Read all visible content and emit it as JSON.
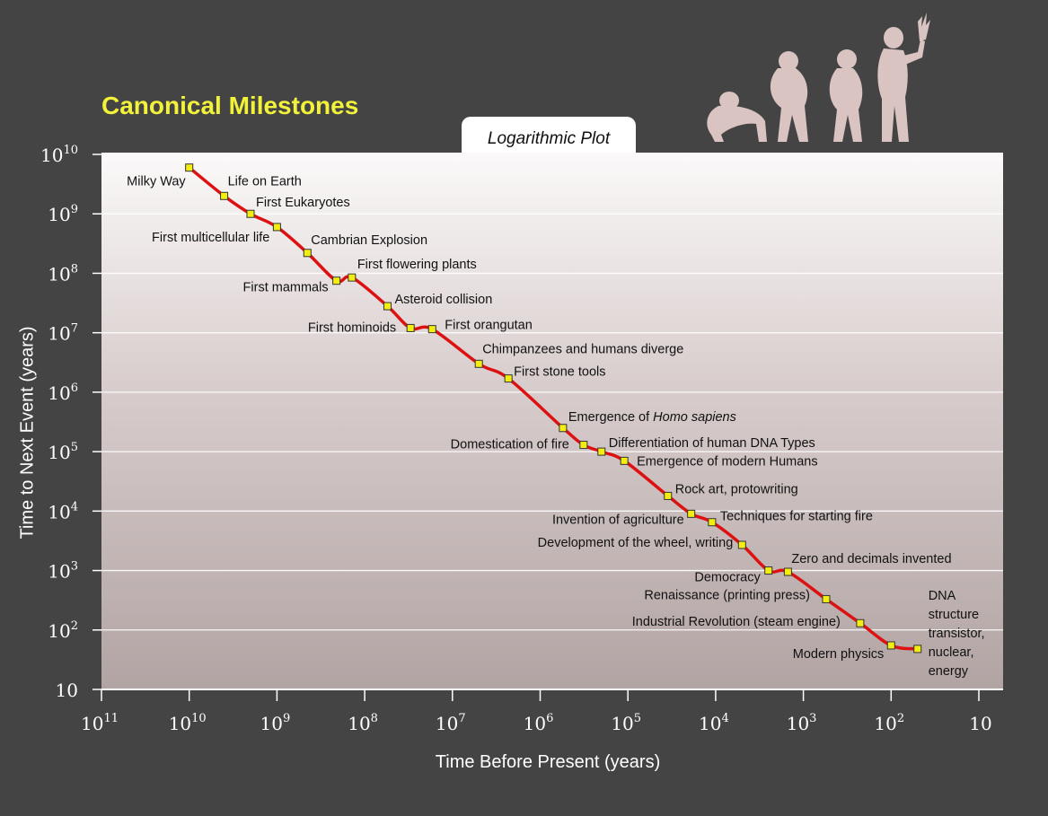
{
  "chart_data": {
    "type": "line",
    "title": "Canonical Milestones",
    "subtitle": "Logarithmic Plot",
    "xlabel": "Time Before Present (years)",
    "ylabel": "Time to Next Event (years)",
    "x_scale": "log",
    "y_scale": "log",
    "xlim": [
      100000000000,
      10
    ],
    "ylim": [
      10,
      10000000000
    ],
    "x_ticks": [
      {
        "exp": 11,
        "base": "10",
        "sup": "11"
      },
      {
        "exp": 10,
        "base": "10",
        "sup": "10"
      },
      {
        "exp": 9,
        "base": "10",
        "sup": "9"
      },
      {
        "exp": 8,
        "base": "10",
        "sup": "8"
      },
      {
        "exp": 7,
        "base": "10",
        "sup": "7"
      },
      {
        "exp": 6,
        "base": "10",
        "sup": "6"
      },
      {
        "exp": 5,
        "base": "10",
        "sup": "5"
      },
      {
        "exp": 4,
        "base": "10",
        "sup": "4"
      },
      {
        "exp": 3,
        "base": "10",
        "sup": "3"
      },
      {
        "exp": 2,
        "base": "10",
        "sup": "2"
      },
      {
        "exp": 1,
        "base": "10",
        "sup": ""
      }
    ],
    "y_ticks": [
      {
        "exp": 10,
        "base": "10",
        "sup": "10"
      },
      {
        "exp": 9,
        "base": "10",
        "sup": "9"
      },
      {
        "exp": 8,
        "base": "10",
        "sup": "8"
      },
      {
        "exp": 7,
        "base": "10",
        "sup": "7"
      },
      {
        "exp": 6,
        "base": "10",
        "sup": "6"
      },
      {
        "exp": 5,
        "base": "10",
        "sup": "5"
      },
      {
        "exp": 4,
        "base": "10",
        "sup": "4"
      },
      {
        "exp": 3,
        "base": "10",
        "sup": "3"
      },
      {
        "exp": 2,
        "base": "10",
        "sup": "2"
      },
      {
        "exp": 1,
        "base": "10",
        "sup": ""
      }
    ],
    "grid": true,
    "line_color": "#dd1111",
    "marker_color": "#f4ee10",
    "points": [
      {
        "label": "Milky Way",
        "x": 10000000000,
        "y": 6000000000
      },
      {
        "label": "Life on Earth",
        "x": 4000000000,
        "y": 2000000000
      },
      {
        "label": "First Eukaryotes",
        "x": 2000000000,
        "y": 1000000000
      },
      {
        "label": "First multicellular life",
        "x": 1000000000,
        "y": 600000000
      },
      {
        "label": "Cambrian Explosion",
        "x": 450000000,
        "y": 220000000
      },
      {
        "label": "First mammals",
        "x": 210000000,
        "y": 75000000
      },
      {
        "label": "First flowering plants",
        "x": 140000000,
        "y": 85000000
      },
      {
        "label": "Asteroid collision",
        "x": 55000000,
        "y": 28000000
      },
      {
        "label": "First hominoids",
        "x": 30000000,
        "y": 12000000
      },
      {
        "label": "First orangutan",
        "x": 17000000,
        "y": 11500000
      },
      {
        "label": "Chimpanzees and humans diverge",
        "x": 5000000,
        "y": 3000000
      },
      {
        "label": "First stone tools",
        "x": 2300000,
        "y": 1700000
      },
      {
        "label_pre": "Emergence of ",
        "label_em": "Homo sapiens",
        "x": 550000,
        "y": 250000
      },
      {
        "label": "Domestication of fire",
        "x": 320000,
        "y": 130000
      },
      {
        "label": "Differentiation of human DNA Types",
        "x": 200000,
        "y": 100000
      },
      {
        "label": "Emergence of modern Humans",
        "x": 110000,
        "y": 70000
      },
      {
        "label": "Rock art, protowriting",
        "x": 35000,
        "y": 18000
      },
      {
        "label": "Invention of agriculture",
        "x": 19000,
        "y": 9000
      },
      {
        "label": "Techniques for starting fire",
        "x": 11000,
        "y": 6500
      },
      {
        "label": "Development of the wheel, writing",
        "x": 5000,
        "y": 2700
      },
      {
        "label": "Democracy",
        "x": 2500,
        "y": 1000
      },
      {
        "label": "Zero and decimals invented",
        "x": 1500,
        "y": 950
      },
      {
        "label": "Renaissance (printing press)",
        "x": 550,
        "y": 330
      },
      {
        "label": "Industrial Revolution (steam engine)",
        "x": 225,
        "y": 130
      },
      {
        "label": "Modern physics",
        "x": 100,
        "y": 55
      },
      {
        "label_lines": [
          "DNA",
          "structure",
          "transistor,",
          "nuclear,",
          "energy"
        ],
        "x": 50,
        "y": 48
      }
    ]
  },
  "decoration": {
    "figures": "evolution-of-man-silhouettes",
    "figure_color": "#d9c4c2"
  }
}
